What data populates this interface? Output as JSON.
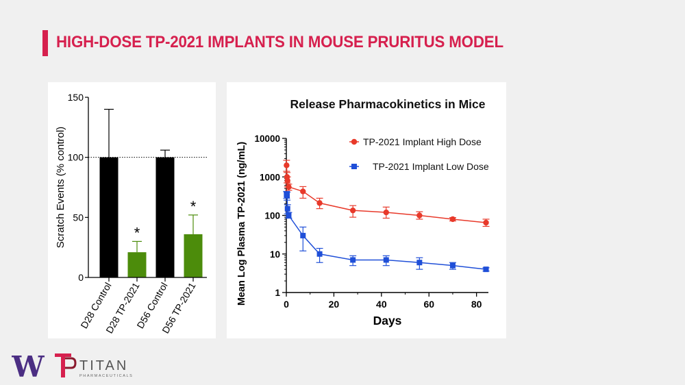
{
  "slide": {
    "title": "HIGH-DOSE TP-2021 IMPLANTS IN MOUSE PRURITUS MODEL",
    "accent_color": "#d6204e",
    "background_color": "#f0f0f0"
  },
  "chart_data": [
    {
      "type": "bar",
      "title": "",
      "xlabel": "",
      "ylabel": "Scratch Events (% control)",
      "ylim": [
        0,
        150
      ],
      "yticks": [
        0,
        50,
        100,
        150
      ],
      "reference_line": 100,
      "categories": [
        "D28 Control",
        "D28 TP-2021",
        "D56 Control",
        "D56 TP-2021"
      ],
      "values": [
        100,
        21,
        100,
        36
      ],
      "error_upper": [
        140,
        30,
        106,
        52
      ],
      "colors": [
        "#000000",
        "#4c8c0b",
        "#000000",
        "#4c8c0b"
      ],
      "annotations": [
        "",
        "*",
        "",
        "*"
      ]
    },
    {
      "type": "line",
      "title": "Release Pharmacokinetics in Mice",
      "xlabel": "Days",
      "ylabel": "Mean Log Plasma TP-2021 (ng/mL)",
      "yscale": "log",
      "ylim": [
        1,
        10000
      ],
      "yticks": [
        1,
        10,
        100,
        1000,
        10000
      ],
      "xlim": [
        0,
        85
      ],
      "xticks": [
        0,
        20,
        40,
        60,
        80
      ],
      "legend_position": "top-right",
      "series": [
        {
          "name": "TP-2021 Implant High Dose",
          "color": "#e8392a",
          "marker": "circle",
          "x": [
            0.1,
            0.3,
            0.5,
            1,
            7,
            14,
            28,
            42,
            56,
            70,
            84
          ],
          "y": [
            2000,
            1000,
            800,
            550,
            420,
            210,
            135,
            120,
            100,
            80,
            65
          ],
          "err_low": [
            1400,
            700,
            550,
            450,
            280,
            150,
            90,
            85,
            80,
            72,
            52
          ],
          "err_high": [
            2700,
            1300,
            1000,
            650,
            560,
            280,
            180,
            165,
            125,
            88,
            80
          ]
        },
        {
          "name": "TP-2021 Implant Low Dose",
          "color": "#1f4fd8",
          "marker": "square",
          "x": [
            0.1,
            0.3,
            0.5,
            1,
            7,
            14,
            28,
            42,
            56,
            70,
            84
          ],
          "y": [
            350,
            330,
            150,
            100,
            30,
            10,
            7,
            7,
            6,
            5,
            4
          ],
          "err_low": [
            280,
            250,
            110,
            85,
            12,
            6,
            5,
            5,
            4,
            4,
            3.6
          ],
          "err_high": [
            420,
            400,
            190,
            120,
            50,
            14,
            9,
            9,
            8,
            6,
            4.4
          ]
        }
      ]
    }
  ],
  "logos": {
    "university": "W",
    "company": "TITAN",
    "company_sub": "PHARMACEUTICALS"
  }
}
